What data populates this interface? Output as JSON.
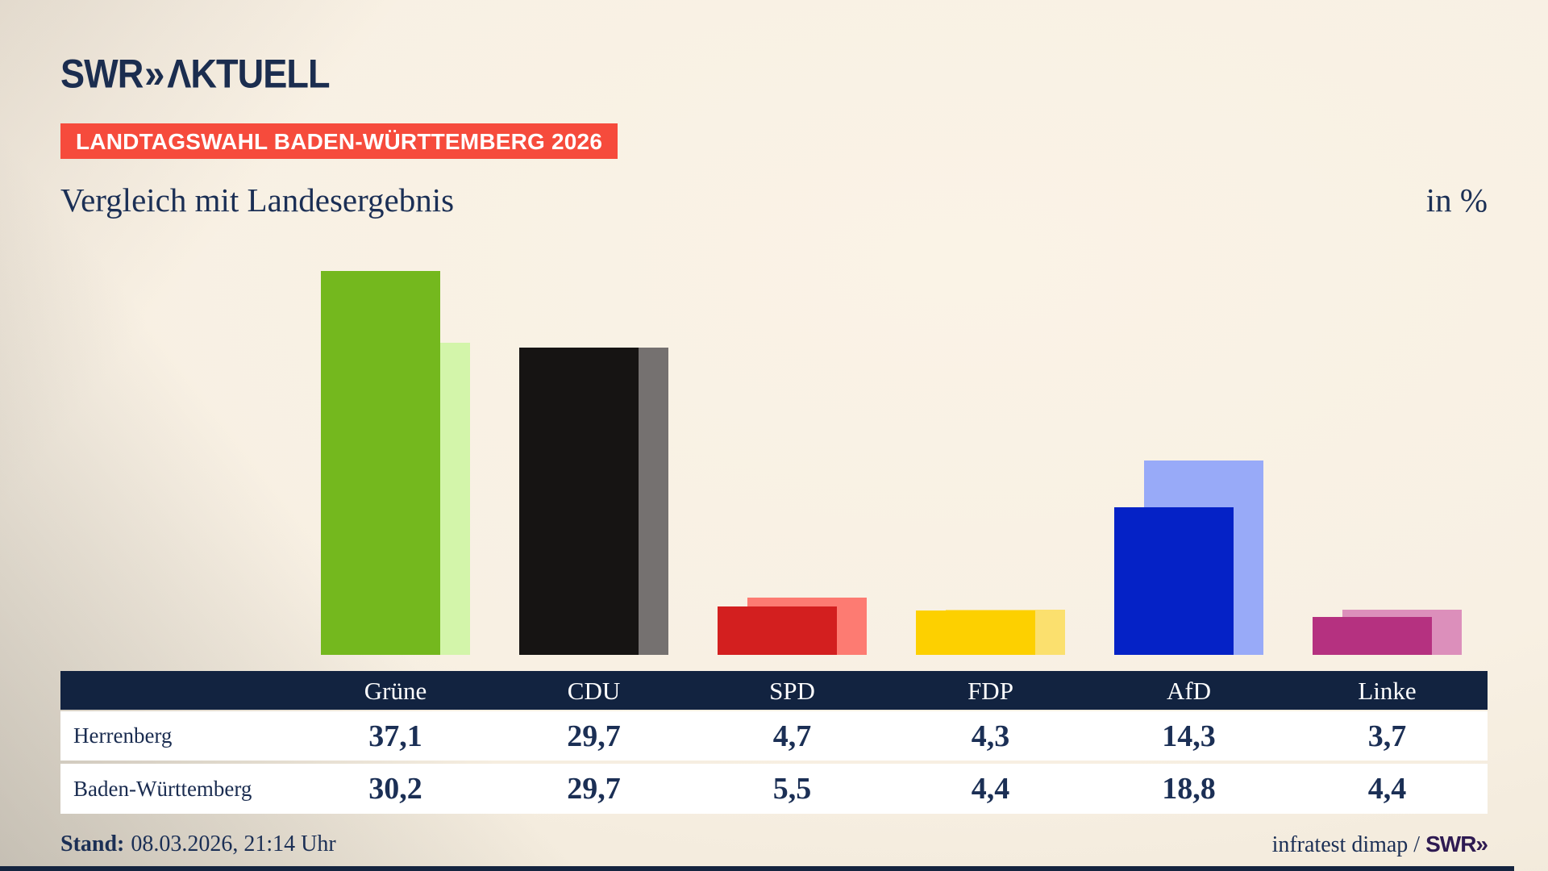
{
  "brand": {
    "logo_main": "SWR",
    "logo_chevron": "»",
    "logo_suffix": "ΛKTUELL"
  },
  "header": {
    "badge": "LANDTAGSWAHL BADEN-WÜRTTEMBERG 2026",
    "title": "Vergleich mit Landesergebnis",
    "unit": "in %"
  },
  "chart_data": {
    "type": "bar",
    "title": "Vergleich mit Landesergebnis",
    "ylabel": "in %",
    "ylim": [
      0,
      40
    ],
    "grid": false,
    "legend_position": "none",
    "categories": [
      "Grüne",
      "CDU",
      "SPD",
      "FDP",
      "AfD",
      "Linke"
    ],
    "series": [
      {
        "name": "Herrenberg",
        "values": [
          37.1,
          29.7,
          4.7,
          4.3,
          14.3,
          3.7
        ]
      },
      {
        "name": "Baden-Württemberg",
        "values": [
          30.2,
          29.7,
          5.5,
          4.4,
          18.8,
          4.4
        ]
      }
    ],
    "party_colors": [
      {
        "party": "Grüne",
        "foreground": "#74b81e",
        "background": "#d3f5aa"
      },
      {
        "party": "CDU",
        "foreground": "#161413",
        "background": "#757170"
      },
      {
        "party": "SPD",
        "foreground": "#d31f1f",
        "background": "#fd7b72"
      },
      {
        "party": "FDP",
        "foreground": "#fdd000",
        "background": "#fbe06e"
      },
      {
        "party": "AfD",
        "foreground": "#0522c6",
        "background": "#98aaf8"
      },
      {
        "party": "Linke",
        "foreground": "#b53180",
        "background": "#dc8fbb"
      }
    ]
  },
  "table": {
    "columns": [
      "Grüne",
      "CDU",
      "SPD",
      "FDP",
      "AfD",
      "Linke"
    ],
    "rows": [
      {
        "label": "Herrenberg",
        "values": [
          "37,1",
          "29,7",
          "4,7",
          "4,3",
          "14,3",
          "3,7"
        ]
      },
      {
        "label": "Baden-Württemberg",
        "values": [
          "30,2",
          "29,7",
          "5,5",
          "4,4",
          "18,8",
          "4,4"
        ]
      }
    ]
  },
  "footer": {
    "stand_label": "Stand:",
    "stand_value": "08.03.2026, 21:14 Uhr",
    "source": "infratest dimap / ",
    "source_logo": "SWR»"
  },
  "colors": {
    "background_light": "#f9f2e5",
    "background_dark": "#d9d3c7",
    "navy_text": "#1b2f55",
    "table_header_bg": "#122340",
    "badge_red": "#f64b3c",
    "swr_purple": "#2e1a52",
    "row_bg": "#ffffff"
  }
}
